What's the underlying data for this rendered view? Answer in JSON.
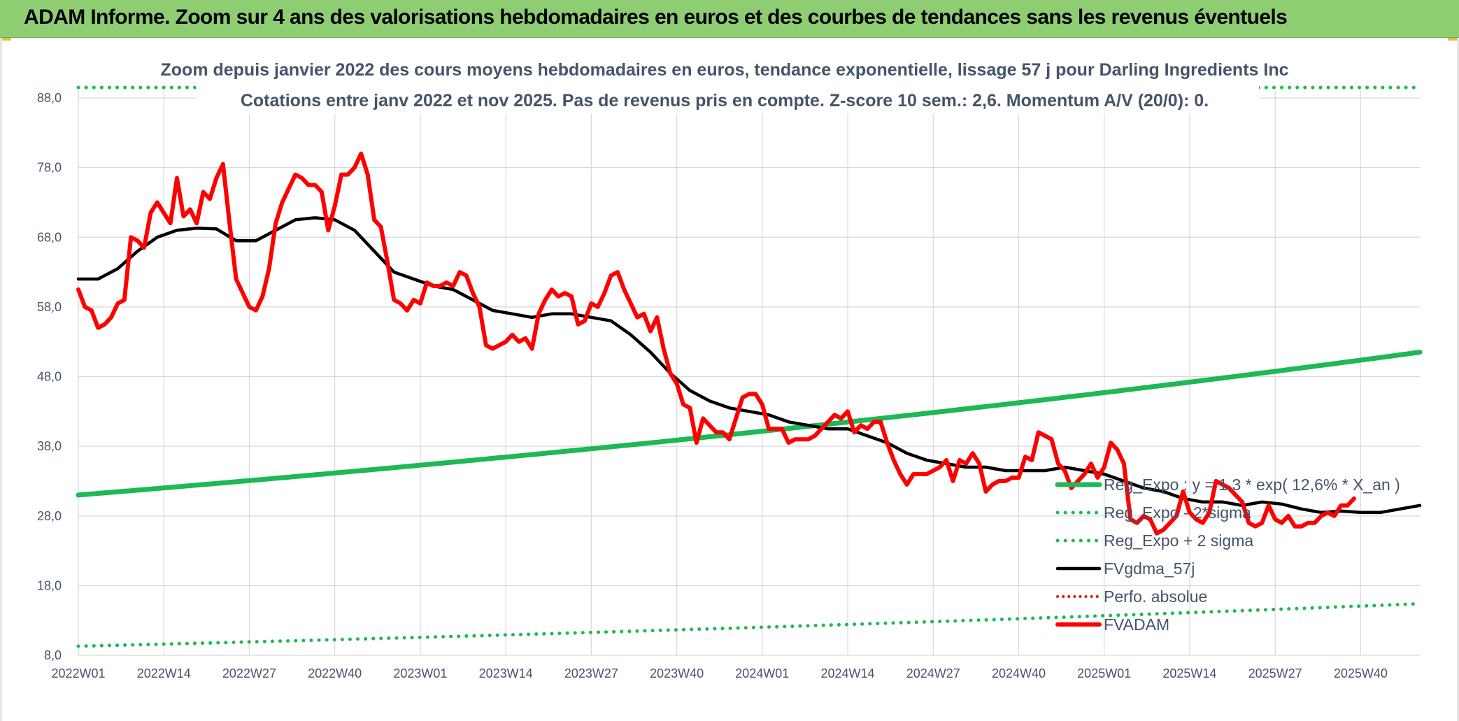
{
  "header": {
    "title": "ADAM Informe. Zoom sur 4 ans des valorisations hebdomadaires en euros et des courbes de tendances sans les revenus éventuels"
  },
  "colors": {
    "regression": "#1db954",
    "bands": "#1db954",
    "smooth": "#000000",
    "absolute": "#e0201b",
    "price": "#ff0000",
    "grid": "#d9d9d9",
    "banner": "#8fcd73"
  },
  "chart_data": {
    "type": "line",
    "title": "Zoom depuis janvier 2022 des cours moyens hebdomadaires en euros, tendance exponentielle, lissage 57 j pour Darling Ingredients Inc",
    "subtitle": "Cotations entre janv 2022 et nov 2025. Pas de revenus pris en compte. Z-score 10 sem.: 2,6. Momentum A/V (20/0): 0.",
    "ylim": [
      8,
      88
    ],
    "y_ticks": [
      "8,0",
      "18,0",
      "28,0",
      "38,0",
      "48,0",
      "58,0",
      "68,0",
      "78,0",
      "88,0"
    ],
    "x_ticks": [
      "2022W01",
      "2022W14",
      "2022W27",
      "2022W40",
      "2023W01",
      "2023W14",
      "2023W27",
      "2023W40",
      "2024W01",
      "2024W14",
      "2024W27",
      "2024W40",
      "2025W01",
      "2025W14",
      "2025W27",
      "2025W40"
    ],
    "x_tick_weeks": [
      0,
      13,
      26,
      39,
      52,
      65,
      78,
      91,
      104,
      117,
      130,
      143,
      156,
      169,
      182,
      195
    ],
    "grid": true,
    "legend_position": "bottom-right",
    "series": [
      {
        "name": "Reg_Expo : y = 1,3 * exp( 12,6% *  X_an )",
        "style": "solid-thick",
        "type": "exponential",
        "start": 31.0,
        "end": 51.5,
        "weeks": [
          0,
          204
        ]
      },
      {
        "name": "Reg_Expo - 2*sigma",
        "style": "dotted",
        "type": "exponential",
        "start": 9.3,
        "end": 15.4,
        "weeks": [
          0,
          204
        ]
      },
      {
        "name": "Reg_Expo + 2 sigma",
        "style": "dotted",
        "type": "exponential",
        "start": 89.5,
        "end": 89.5,
        "weeks": [
          0,
          204
        ]
      },
      {
        "name": "FVgdma_57j",
        "style": "solid",
        "points": [
          [
            0,
            62
          ],
          [
            3,
            62
          ],
          [
            6,
            63.5
          ],
          [
            9,
            66
          ],
          [
            12,
            68
          ],
          [
            15,
            69
          ],
          [
            18,
            69.3
          ],
          [
            21,
            69.2
          ],
          [
            24,
            67.5
          ],
          [
            27,
            67.5
          ],
          [
            30,
            69
          ],
          [
            33,
            70.5
          ],
          [
            36,
            70.8
          ],
          [
            39,
            70.5
          ],
          [
            42,
            69
          ],
          [
            45,
            66
          ],
          [
            48,
            63
          ],
          [
            51,
            62
          ],
          [
            54,
            61
          ],
          [
            57,
            60.5
          ],
          [
            60,
            59
          ],
          [
            63,
            57.5
          ],
          [
            66,
            57
          ],
          [
            69,
            56.5
          ],
          [
            72,
            57
          ],
          [
            75,
            57
          ],
          [
            78,
            56.5
          ],
          [
            81,
            56
          ],
          [
            84,
            54
          ],
          [
            87,
            51.5
          ],
          [
            90,
            48.5
          ],
          [
            93,
            46
          ],
          [
            96,
            44.5
          ],
          [
            99,
            43.5
          ],
          [
            102,
            43
          ],
          [
            105,
            42.5
          ],
          [
            108,
            41.5
          ],
          [
            111,
            41
          ],
          [
            114,
            40.5
          ],
          [
            117,
            40.5
          ],
          [
            120,
            39.5
          ],
          [
            123,
            38.5
          ],
          [
            126,
            37
          ],
          [
            129,
            36
          ],
          [
            132,
            35.5
          ],
          [
            135,
            35
          ],
          [
            138,
            35
          ],
          [
            141,
            34.5
          ],
          [
            144,
            34.5
          ],
          [
            147,
            34.5
          ],
          [
            150,
            35
          ],
          [
            153,
            34.5
          ],
          [
            156,
            34
          ],
          [
            159,
            33
          ],
          [
            162,
            32
          ],
          [
            165,
            31.5
          ],
          [
            168,
            30.5
          ],
          [
            171,
            30
          ],
          [
            174,
            30
          ],
          [
            177,
            29.5
          ],
          [
            180,
            30
          ],
          [
            183,
            29.7
          ],
          [
            186,
            29
          ],
          [
            189,
            28.5
          ],
          [
            192,
            28.7
          ],
          [
            195,
            28.5
          ],
          [
            198,
            28.5
          ],
          [
            201,
            29
          ],
          [
            204,
            29.5
          ]
        ]
      },
      {
        "name": "Perfo. absolue",
        "style": "dotted",
        "points": []
      },
      {
        "name": "FVADAM",
        "style": "solid-thick",
        "points": [
          [
            0,
            60.5
          ],
          [
            1,
            58
          ],
          [
            2,
            57.5
          ],
          [
            3,
            55
          ],
          [
            4,
            55.5
          ],
          [
            5,
            56.5
          ],
          [
            6,
            58.5
          ],
          [
            7,
            59
          ],
          [
            8,
            68
          ],
          [
            9,
            67.5
          ],
          [
            10,
            66.5
          ],
          [
            11,
            71.5
          ],
          [
            12,
            73
          ],
          [
            13,
            71.5
          ],
          [
            14,
            70
          ],
          [
            15,
            76.5
          ],
          [
            16,
            71
          ],
          [
            17,
            72
          ],
          [
            18,
            70
          ],
          [
            19,
            74.5
          ],
          [
            20,
            73.5
          ],
          [
            21,
            76.5
          ],
          [
            22,
            78.5
          ],
          [
            23,
            70
          ],
          [
            24,
            62
          ],
          [
            25,
            60
          ],
          [
            26,
            58
          ],
          [
            27,
            57.5
          ],
          [
            28,
            59.5
          ],
          [
            29,
            63.5
          ],
          [
            30,
            70
          ],
          [
            31,
            73
          ],
          [
            32,
            75
          ],
          [
            33,
            77
          ],
          [
            34,
            76.5
          ],
          [
            35,
            75.5
          ],
          [
            36,
            75.5
          ],
          [
            37,
            74.5
          ],
          [
            38,
            69
          ],
          [
            39,
            72.5
          ],
          [
            40,
            77
          ],
          [
            41,
            77
          ],
          [
            42,
            78
          ],
          [
            43,
            80
          ],
          [
            44,
            77
          ],
          [
            45,
            70.5
          ],
          [
            46,
            69.5
          ],
          [
            47,
            64.5
          ],
          [
            48,
            59
          ],
          [
            49,
            58.5
          ],
          [
            50,
            57.5
          ],
          [
            51,
            59
          ],
          [
            52,
            58.5
          ],
          [
            53,
            61.5
          ],
          [
            54,
            61
          ],
          [
            55,
            61
          ],
          [
            56,
            61.5
          ],
          [
            57,
            61
          ],
          [
            58,
            63
          ],
          [
            59,
            62.5
          ],
          [
            60,
            60
          ],
          [
            61,
            58
          ],
          [
            62,
            52.5
          ],
          [
            63,
            52
          ],
          [
            64,
            52.5
          ],
          [
            65,
            53
          ],
          [
            66,
            54
          ],
          [
            67,
            53
          ],
          [
            68,
            53.5
          ],
          [
            69,
            52
          ],
          [
            70,
            57
          ],
          [
            71,
            59
          ],
          [
            72,
            60.5
          ],
          [
            73,
            59.5
          ],
          [
            74,
            60
          ],
          [
            75,
            59.5
          ],
          [
            76,
            55.5
          ],
          [
            77,
            56
          ],
          [
            78,
            58.5
          ],
          [
            79,
            58
          ],
          [
            80,
            60
          ],
          [
            81,
            62.5
          ],
          [
            82,
            63
          ],
          [
            83,
            60.5
          ],
          [
            84,
            58.5
          ],
          [
            85,
            56.5
          ],
          [
            86,
            57
          ],
          [
            87,
            54.5
          ],
          [
            88,
            56.5
          ],
          [
            89,
            52
          ],
          [
            90,
            48.5
          ],
          [
            91,
            47
          ],
          [
            92,
            44
          ],
          [
            93,
            43.5
          ],
          [
            94,
            38.5
          ],
          [
            95,
            42
          ],
          [
            96,
            41
          ],
          [
            97,
            40
          ],
          [
            98,
            40
          ],
          [
            99,
            39
          ],
          [
            100,
            42
          ],
          [
            101,
            45
          ],
          [
            102,
            45.5
          ],
          [
            103,
            45.5
          ],
          [
            104,
            44
          ],
          [
            105,
            40.5
          ],
          [
            106,
            40.5
          ],
          [
            107,
            40.5
          ],
          [
            108,
            38.5
          ],
          [
            109,
            39
          ],
          [
            110,
            39
          ],
          [
            111,
            39
          ],
          [
            112,
            39.5
          ],
          [
            113,
            40.5
          ],
          [
            114,
            41.5
          ],
          [
            115,
            42.5
          ],
          [
            116,
            42
          ],
          [
            117,
            43
          ],
          [
            118,
            40
          ],
          [
            119,
            41
          ],
          [
            120,
            40.5
          ],
          [
            121,
            41.5
          ],
          [
            122,
            41.5
          ],
          [
            123,
            38.5
          ],
          [
            124,
            36
          ],
          [
            125,
            34
          ],
          [
            126,
            32.5
          ],
          [
            127,
            34
          ],
          [
            128,
            34
          ],
          [
            129,
            34
          ],
          [
            130,
            34.5
          ],
          [
            131,
            35
          ],
          [
            132,
            36
          ],
          [
            133,
            33
          ],
          [
            134,
            36
          ],
          [
            135,
            35.5
          ],
          [
            136,
            37
          ],
          [
            137,
            35.5
          ],
          [
            138,
            31.5
          ],
          [
            139,
            32.5
          ],
          [
            140,
            33
          ],
          [
            141,
            33
          ],
          [
            142,
            33.5
          ],
          [
            143,
            33.5
          ],
          [
            144,
            36.5
          ],
          [
            145,
            36
          ],
          [
            146,
            40
          ],
          [
            147,
            39.5
          ],
          [
            148,
            39
          ],
          [
            149,
            35.5
          ],
          [
            150,
            34.5
          ],
          [
            151,
            32
          ],
          [
            152,
            33
          ],
          [
            153,
            34
          ],
          [
            154,
            35.5
          ],
          [
            155,
            33.5
          ],
          [
            156,
            35
          ],
          [
            157,
            38.5
          ],
          [
            158,
            37.5
          ],
          [
            159,
            35.5
          ],
          [
            160,
            27.5
          ],
          [
            161,
            27
          ],
          [
            162,
            28
          ],
          [
            163,
            27.5
          ],
          [
            164,
            25.5
          ],
          [
            165,
            26
          ],
          [
            166,
            27
          ],
          [
            167,
            28
          ],
          [
            168,
            31.5
          ],
          [
            169,
            28.5
          ],
          [
            170,
            27.5
          ],
          [
            171,
            27
          ],
          [
            172,
            28.5
          ],
          [
            173,
            33
          ],
          [
            174,
            32.5
          ],
          [
            175,
            32
          ],
          [
            176,
            31
          ],
          [
            177,
            30
          ],
          [
            178,
            27
          ],
          [
            179,
            26.5
          ],
          [
            180,
            27
          ],
          [
            181,
            29.5
          ],
          [
            182,
            27.5
          ],
          [
            183,
            27
          ],
          [
            184,
            28
          ],
          [
            185,
            26.5
          ],
          [
            186,
            26.5
          ],
          [
            187,
            27
          ],
          [
            188,
            27
          ],
          [
            189,
            28
          ],
          [
            190,
            28.5
          ],
          [
            191,
            28
          ],
          [
            192,
            29.5
          ],
          [
            193,
            29.5
          ],
          [
            194,
            30.5
          ]
        ]
      }
    ]
  }
}
